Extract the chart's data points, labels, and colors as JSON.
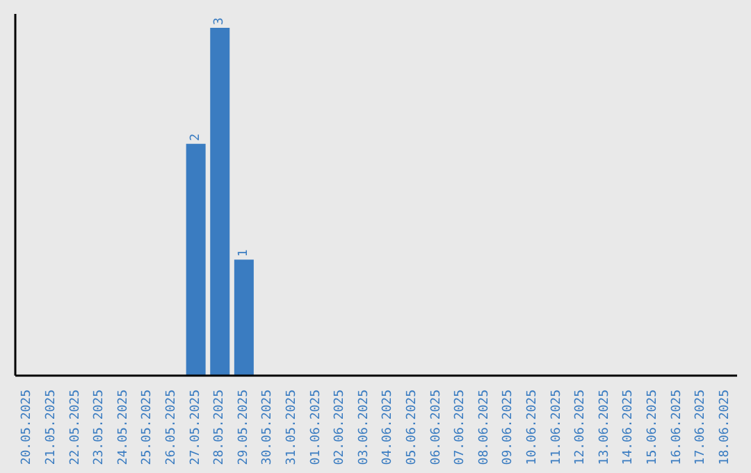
{
  "chart_data": {
    "type": "bar",
    "categories": [
      "20.05.2025",
      "21.05.2025",
      "22.05.2025",
      "23.05.2025",
      "24.05.2025",
      "25.05.2025",
      "26.05.2025",
      "27.05.2025",
      "28.05.2025",
      "29.05.2025",
      "30.05.2025",
      "31.05.2025",
      "01.06.2025",
      "02.06.2025",
      "03.06.2025",
      "04.06.2025",
      "05.06.2025",
      "06.06.2025",
      "07.06.2025",
      "08.06.2025",
      "09.06.2025",
      "10.06.2025",
      "11.06.2025",
      "12.06.2025",
      "13.06.2025",
      "14.06.2025",
      "15.06.2025",
      "16.06.2025",
      "17.06.2025",
      "18.06.2025"
    ],
    "values": [
      0,
      0,
      0,
      0,
      0,
      0,
      0,
      2,
      3,
      1,
      0,
      0,
      0,
      0,
      0,
      0,
      0,
      0,
      0,
      0,
      0,
      0,
      0,
      0,
      0,
      0,
      0,
      0,
      0,
      0
    ],
    "value_labels": [
      null,
      null,
      null,
      null,
      null,
      null,
      null,
      "2",
      "3",
      "1",
      null,
      null,
      null,
      null,
      null,
      null,
      null,
      null,
      null,
      null,
      null,
      null,
      null,
      null,
      null,
      null,
      null,
      null,
      null,
      null
    ],
    "color": "#3a7cc1"
  }
}
